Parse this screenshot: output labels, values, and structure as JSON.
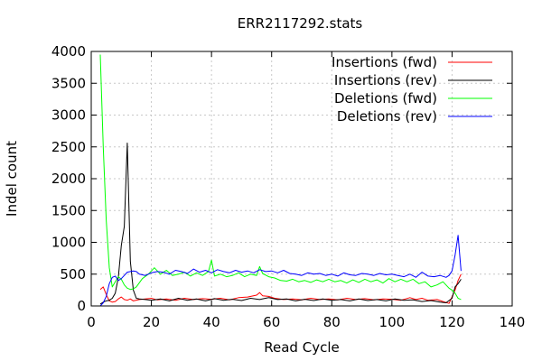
{
  "chart_data": {
    "type": "line",
    "title": "ERR2117292.stats",
    "xlabel": "Read Cycle",
    "ylabel": "Indel count",
    "xlim": [
      0,
      140
    ],
    "ylim": [
      0,
      4000
    ],
    "xticks": [
      0,
      20,
      40,
      60,
      80,
      100,
      120,
      140
    ],
    "yticks": [
      0,
      500,
      1000,
      1500,
      2000,
      2500,
      3000,
      3500,
      4000
    ],
    "grid": true,
    "legend_position": "top-right",
    "series": [
      {
        "name": "Insertions (fwd)",
        "color": "#ff0000",
        "points": [
          [
            3,
            260
          ],
          [
            4,
            300
          ],
          [
            5,
            180
          ],
          [
            6,
            80
          ],
          [
            7,
            60
          ],
          [
            8,
            70
          ],
          [
            9,
            110
          ],
          [
            10,
            140
          ],
          [
            11,
            100
          ],
          [
            12,
            90
          ],
          [
            13,
            110
          ],
          [
            14,
            80
          ],
          [
            16,
            100
          ],
          [
            18,
            110
          ],
          [
            20,
            120
          ],
          [
            22,
            95
          ],
          [
            25,
            110
          ],
          [
            28,
            90
          ],
          [
            31,
            120
          ],
          [
            34,
            100
          ],
          [
            37,
            115
          ],
          [
            40,
            105
          ],
          [
            43,
            120
          ],
          [
            46,
            95
          ],
          [
            49,
            130
          ],
          [
            52,
            140
          ],
          [
            55,
            170
          ],
          [
            56,
            210
          ],
          [
            57,
            160
          ],
          [
            59,
            150
          ],
          [
            61,
            120
          ],
          [
            64,
            100
          ],
          [
            67,
            110
          ],
          [
            70,
            95
          ],
          [
            73,
            120
          ],
          [
            76,
            100
          ],
          [
            79,
            110
          ],
          [
            82,
            95
          ],
          [
            85,
            120
          ],
          [
            88,
            100
          ],
          [
            91,
            115
          ],
          [
            94,
            95
          ],
          [
            97,
            110
          ],
          [
            100,
            105
          ],
          [
            103,
            90
          ],
          [
            106,
            130
          ],
          [
            108,
            100
          ],
          [
            110,
            120
          ],
          [
            112,
            90
          ],
          [
            115,
            100
          ],
          [
            117,
            70
          ],
          [
            119,
            40
          ],
          [
            121,
            250
          ],
          [
            122,
            400
          ],
          [
            123,
            500
          ]
        ]
      },
      {
        "name": "Insertions (rev)",
        "color": "#000000",
        "points": [
          [
            3,
            30
          ],
          [
            4,
            60
          ],
          [
            5,
            80
          ],
          [
            6,
            90
          ],
          [
            7,
            120
          ],
          [
            8,
            200
          ],
          [
            9,
            450
          ],
          [
            10,
            950
          ],
          [
            11,
            1250
          ],
          [
            12,
            2560
          ],
          [
            13,
            700
          ],
          [
            14,
            250
          ],
          [
            15,
            120
          ],
          [
            16,
            110
          ],
          [
            18,
            100
          ],
          [
            20,
            90
          ],
          [
            23,
            110
          ],
          [
            26,
            80
          ],
          [
            29,
            120
          ],
          [
            32,
            90
          ],
          [
            35,
            110
          ],
          [
            38,
            80
          ],
          [
            41,
            115
          ],
          [
            44,
            90
          ],
          [
            47,
            105
          ],
          [
            50,
            85
          ],
          [
            53,
            120
          ],
          [
            56,
            100
          ],
          [
            59,
            130
          ],
          [
            62,
            100
          ],
          [
            65,
            110
          ],
          [
            68,
            80
          ],
          [
            71,
            105
          ],
          [
            74,
            85
          ],
          [
            77,
            110
          ],
          [
            80,
            90
          ],
          [
            83,
            100
          ],
          [
            86,
            80
          ],
          [
            89,
            110
          ],
          [
            92,
            85
          ],
          [
            95,
            100
          ],
          [
            98,
            80
          ],
          [
            101,
            110
          ],
          [
            104,
            90
          ],
          [
            107,
            95
          ],
          [
            110,
            70
          ],
          [
            113,
            85
          ],
          [
            116,
            60
          ],
          [
            118,
            50
          ],
          [
            120,
            120
          ],
          [
            121,
            300
          ],
          [
            122,
            350
          ],
          [
            123,
            420
          ]
        ]
      },
      {
        "name": "Deletions (fwd)",
        "color": "#00ff00",
        "points": [
          [
            3,
            3950
          ],
          [
            4,
            2500
          ],
          [
            5,
            1350
          ],
          [
            6,
            600
          ],
          [
            7,
            300
          ],
          [
            8,
            380
          ],
          [
            9,
            460
          ],
          [
            10,
            420
          ],
          [
            11,
            330
          ],
          [
            12,
            280
          ],
          [
            13,
            260
          ],
          [
            14,
            270
          ],
          [
            15,
            300
          ],
          [
            17,
            430
          ],
          [
            19,
            500
          ],
          [
            21,
            600
          ],
          [
            23,
            500
          ],
          [
            25,
            560
          ],
          [
            27,
            480
          ],
          [
            29,
            500
          ],
          [
            31,
            530
          ],
          [
            33,
            470
          ],
          [
            35,
            520
          ],
          [
            37,
            480
          ],
          [
            39,
            540
          ],
          [
            40,
            720
          ],
          [
            41,
            470
          ],
          [
            43,
            500
          ],
          [
            45,
            460
          ],
          [
            47,
            480
          ],
          [
            49,
            520
          ],
          [
            51,
            460
          ],
          [
            53,
            500
          ],
          [
            55,
            480
          ],
          [
            56,
            620
          ],
          [
            57,
            510
          ],
          [
            59,
            460
          ],
          [
            61,
            440
          ],
          [
            63,
            400
          ],
          [
            65,
            390
          ],
          [
            67,
            420
          ],
          [
            69,
            380
          ],
          [
            71,
            400
          ],
          [
            73,
            370
          ],
          [
            75,
            410
          ],
          [
            77,
            380
          ],
          [
            79,
            420
          ],
          [
            81,
            380
          ],
          [
            83,
            400
          ],
          [
            85,
            360
          ],
          [
            87,
            410
          ],
          [
            89,
            370
          ],
          [
            91,
            420
          ],
          [
            93,
            380
          ],
          [
            95,
            410
          ],
          [
            97,
            360
          ],
          [
            99,
            430
          ],
          [
            101,
            380
          ],
          [
            103,
            420
          ],
          [
            105,
            380
          ],
          [
            107,
            420
          ],
          [
            109,
            350
          ],
          [
            111,
            380
          ],
          [
            113,
            300
          ],
          [
            115,
            330
          ],
          [
            117,
            380
          ],
          [
            119,
            280
          ],
          [
            120,
            250
          ],
          [
            121,
            200
          ],
          [
            122,
            120
          ],
          [
            123,
            100
          ]
        ]
      },
      {
        "name": "Deletions (rev)",
        "color": "#0000ff",
        "points": [
          [
            3,
            0
          ],
          [
            4,
            50
          ],
          [
            5,
            150
          ],
          [
            6,
            350
          ],
          [
            7,
            450
          ],
          [
            8,
            470
          ],
          [
            9,
            400
          ],
          [
            10,
            430
          ],
          [
            11,
            480
          ],
          [
            12,
            530
          ],
          [
            13,
            540
          ],
          [
            14,
            550
          ],
          [
            15,
            540
          ],
          [
            16,
            500
          ],
          [
            18,
            480
          ],
          [
            20,
            520
          ],
          [
            22,
            540
          ],
          [
            24,
            530
          ],
          [
            26,
            500
          ],
          [
            28,
            560
          ],
          [
            30,
            540
          ],
          [
            32,
            510
          ],
          [
            34,
            580
          ],
          [
            36,
            530
          ],
          [
            38,
            560
          ],
          [
            40,
            520
          ],
          [
            42,
            570
          ],
          [
            44,
            540
          ],
          [
            46,
            520
          ],
          [
            48,
            560
          ],
          [
            50,
            530
          ],
          [
            52,
            550
          ],
          [
            54,
            520
          ],
          [
            56,
            570
          ],
          [
            58,
            540
          ],
          [
            60,
            550
          ],
          [
            62,
            520
          ],
          [
            64,
            560
          ],
          [
            66,
            510
          ],
          [
            68,
            500
          ],
          [
            70,
            480
          ],
          [
            72,
            520
          ],
          [
            74,
            500
          ],
          [
            76,
            510
          ],
          [
            78,
            480
          ],
          [
            80,
            500
          ],
          [
            82,
            470
          ],
          [
            84,
            520
          ],
          [
            86,
            490
          ],
          [
            88,
            480
          ],
          [
            90,
            510
          ],
          [
            92,
            500
          ],
          [
            94,
            480
          ],
          [
            96,
            510
          ],
          [
            98,
            490
          ],
          [
            100,
            500
          ],
          [
            102,
            480
          ],
          [
            104,
            460
          ],
          [
            106,
            500
          ],
          [
            108,
            450
          ],
          [
            110,
            530
          ],
          [
            112,
            470
          ],
          [
            114,
            460
          ],
          [
            116,
            480
          ],
          [
            118,
            450
          ],
          [
            119,
            480
          ],
          [
            120,
            550
          ],
          [
            121,
            800
          ],
          [
            122,
            1110
          ],
          [
            123,
            550
          ]
        ]
      }
    ]
  }
}
